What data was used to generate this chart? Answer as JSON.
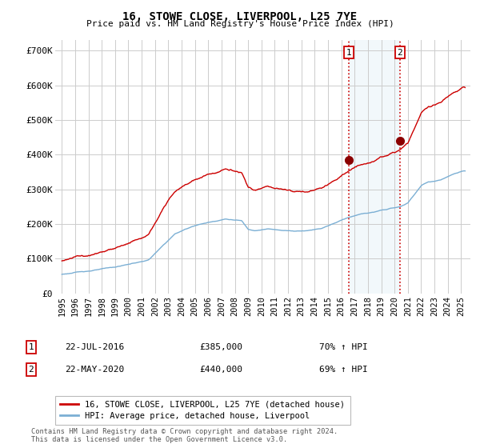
{
  "title": "16, STOWE CLOSE, LIVERPOOL, L25 7YE",
  "subtitle": "Price paid vs. HM Land Registry's House Price Index (HPI)",
  "ylabel_ticks": [
    "£0",
    "£100K",
    "£200K",
    "£300K",
    "£400K",
    "£500K",
    "£600K",
    "£700K"
  ],
  "ytick_values": [
    0,
    100000,
    200000,
    300000,
    400000,
    500000,
    600000,
    700000
  ],
  "ylim": [
    0,
    730000
  ],
  "xlim_start": 1994.5,
  "xlim_end": 2025.7,
  "x_tick_years": [
    1995,
    1996,
    1997,
    1998,
    1999,
    2000,
    2001,
    2002,
    2003,
    2004,
    2005,
    2006,
    2007,
    2008,
    2009,
    2010,
    2011,
    2012,
    2013,
    2014,
    2015,
    2016,
    2017,
    2018,
    2019,
    2020,
    2021,
    2022,
    2023,
    2024,
    2025
  ],
  "sale1_x": 2016.55,
  "sale1_y": 385000,
  "sale2_x": 2020.39,
  "sale2_y": 440000,
  "hpi_color": "#7bafd4",
  "price_color": "#cc0000",
  "sale_marker_color": "#8b0000",
  "vline_color": "#cc0000",
  "shade_color": "#d6e8f5",
  "legend_label_red": "16, STOWE CLOSE, LIVERPOOL, L25 7YE (detached house)",
  "legend_label_blue": "HPI: Average price, detached house, Liverpool",
  "annotation1_num": "1",
  "annotation2_num": "2",
  "annotation1_date": "22-JUL-2016",
  "annotation1_price": "£385,000",
  "annotation1_hpi": "70% ↑ HPI",
  "annotation2_date": "22-MAY-2020",
  "annotation2_price": "£440,000",
  "annotation2_hpi": "69% ↑ HPI",
  "footer": "Contains HM Land Registry data © Crown copyright and database right 2024.\nThis data is licensed under the Open Government Licence v3.0.",
  "background_color": "#ffffff",
  "plot_bg_color": "#ffffff",
  "grid_color": "#cccccc"
}
